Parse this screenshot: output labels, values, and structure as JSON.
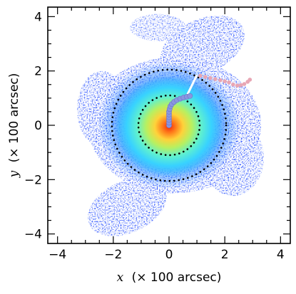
{
  "chart_data": {
    "type": "scatter",
    "title": "",
    "xlabel_var": "x",
    "xlabel_units": "(× 100 arcsec)",
    "ylabel_var": "y",
    "ylabel_units": "(× 100 arcsec)",
    "xlim": [
      -4.35,
      4.35
    ],
    "ylim": [
      -4.35,
      4.35
    ],
    "x_ticks": [
      -4,
      -2,
      0,
      2,
      4
    ],
    "x_tick_labels": [
      "−4",
      "−2",
      "0",
      "2",
      "4"
    ],
    "y_ticks": [
      -4,
      -2,
      0,
      2,
      4
    ],
    "y_tick_labels": [
      "−4",
      "−2",
      "0",
      "2",
      "4"
    ],
    "grid": false,
    "legend": "none",
    "image": {
      "kind": "density map",
      "colormap": "jet",
      "center": [
        0,
        0
      ],
      "colors": [
        "#1a44ff",
        "#2f8cff",
        "#38d2ff",
        "#5ef0d0",
        "#b8f060",
        "#ffd23a",
        "#ff7a1a",
        "#f02a10"
      ]
    },
    "circles": [
      {
        "center": [
          0,
          0
        ],
        "radius": 1.1,
        "style": "dotted",
        "color": "#000000"
      },
      {
        "center": [
          0,
          0
        ],
        "radius": 2.05,
        "style": "dotted",
        "color": "#000000"
      }
    ],
    "track_blue": {
      "color": "#8a96e0",
      "points": [
        [
          0.0,
          0.0
        ],
        [
          0.0,
          0.1
        ],
        [
          0.0,
          0.2
        ],
        [
          0.0,
          0.3
        ],
        [
          0.0,
          0.4
        ],
        [
          0.0,
          0.5
        ],
        [
          0.02,
          0.6
        ],
        [
          0.05,
          0.7
        ],
        [
          0.1,
          0.78
        ],
        [
          0.18,
          0.86
        ],
        [
          0.28,
          0.93
        ],
        [
          0.4,
          0.98
        ],
        [
          0.52,
          1.02
        ],
        [
          0.64,
          1.05
        ],
        [
          0.75,
          1.08
        ]
      ]
    },
    "track_line": {
      "color": "#ffffff",
      "points": [
        [
          0.62,
          1.05
        ],
        [
          1.0,
          1.85
        ]
      ]
    },
    "track_pink": {
      "color": "#e8a6b4",
      "points": [
        [
          1.12,
          1.82
        ],
        [
          1.3,
          1.78
        ],
        [
          1.48,
          1.74
        ],
        [
          1.66,
          1.7
        ],
        [
          1.84,
          1.66
        ],
        [
          2.0,
          1.62
        ],
        [
          2.15,
          1.58
        ],
        [
          2.3,
          1.5
        ],
        [
          2.45,
          1.46
        ],
        [
          2.58,
          1.48
        ],
        [
          2.7,
          1.52
        ],
        [
          2.82,
          1.6
        ],
        [
          2.9,
          1.68
        ]
      ]
    }
  }
}
